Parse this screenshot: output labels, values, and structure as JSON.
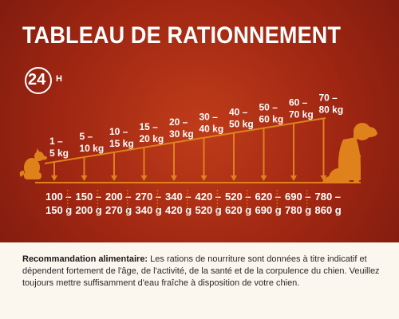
{
  "title": "TABLEAU DE RATIONNEMENT",
  "badge": {
    "number": "24",
    "unit": "H",
    "icon": "24h-clock-icon"
  },
  "colors": {
    "background": "#9f2612",
    "accent": "#e0821c",
    "text": "#ffffff",
    "note_background": "#fbf6ee"
  },
  "weight_unit": "kg",
  "ration_unit": "g",
  "columns": [
    {
      "weight": [
        "1 –",
        "5 kg"
      ],
      "ration": [
        "100 –",
        "150 g"
      ]
    },
    {
      "weight": [
        "5 –",
        "10 kg"
      ],
      "ration": [
        "150 –",
        "200 g"
      ]
    },
    {
      "weight": [
        "10 –",
        "15 kg"
      ],
      "ration": [
        "200 –",
        "270 g"
      ]
    },
    {
      "weight": [
        "15 –",
        "20 kg"
      ],
      "ration": [
        "270 –",
        "340 g"
      ]
    },
    {
      "weight": [
        "20 –",
        "30 kg"
      ],
      "ration": [
        "340 –",
        "420 g"
      ]
    },
    {
      "weight": [
        "30 –",
        "40 kg"
      ],
      "ration": [
        "420 –",
        "520 g"
      ]
    },
    {
      "weight": [
        "40 –",
        "50 kg"
      ],
      "ration": [
        "520 –",
        "620 g"
      ]
    },
    {
      "weight": [
        "50 –",
        "60 kg"
      ],
      "ration": [
        "620 –",
        "690 g"
      ]
    },
    {
      "weight": [
        "60 –",
        "70 kg"
      ],
      "ration": [
        "690 –",
        "780 g"
      ]
    },
    {
      "weight": [
        "70 –",
        "80 kg"
      ],
      "ration": [
        "780 –",
        "860 g"
      ]
    }
  ],
  "icons": {
    "small_dog": "small-dog-icon",
    "large_dog": "large-dog-icon"
  },
  "note": {
    "label": "Recommandation alimentaire:",
    "text": " Les rations de nourriture sont données à titre indicatif et dépendent fortement de l'âge, de l'activité, de la santé et de la corpulence du chien. Veuillez toujours mettre suffisamment d'eau fraîche à disposition de votre chien."
  }
}
